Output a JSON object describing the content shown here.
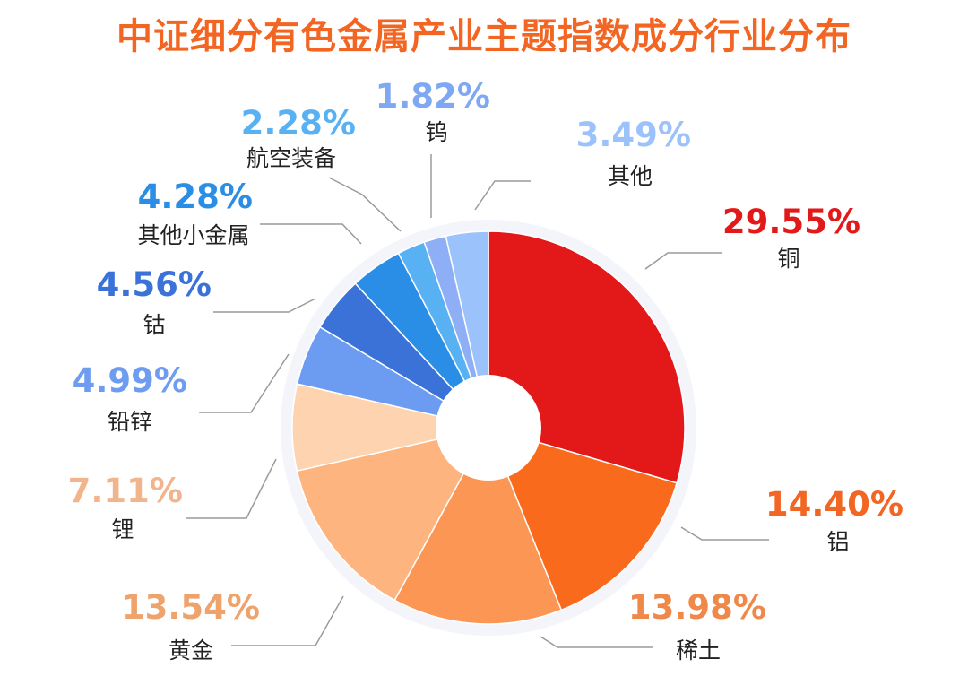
{
  "chart_data": {
    "type": "pie",
    "style": "donut",
    "title": "中证细分有色金属产业主题指数成分行业分布",
    "unit": "%",
    "slices": [
      {
        "label": "铜",
        "value": 29.55,
        "display": "29.55%",
        "color": "#e31818"
      },
      {
        "label": "铝",
        "value": 14.4,
        "display": "14.40%",
        "color": "#fa6a1c"
      },
      {
        "label": "稀土",
        "value": 13.98,
        "display": "13.98%",
        "color": "#fc9654"
      },
      {
        "label": "黄金",
        "value": 13.54,
        "display": "13.54%",
        "color": "#fdb47e"
      },
      {
        "label": "锂",
        "value": 7.11,
        "display": "7.11%",
        "color": "#fdd3b0"
      },
      {
        "label": "铅锌",
        "value": 4.99,
        "display": "4.99%",
        "color": "#6c9cf2"
      },
      {
        "label": "钴",
        "value": 4.56,
        "display": "4.56%",
        "color": "#3a72d8"
      },
      {
        "label": "其他小金属",
        "value": 4.28,
        "display": "4.28%",
        "color": "#2b8ee6"
      },
      {
        "label": "航空装备",
        "value": 2.28,
        "display": "2.28%",
        "color": "#57b1f3"
      },
      {
        "label": "钨",
        "value": 1.82,
        "display": "1.82%",
        "color": "#8eaef5"
      },
      {
        "label": "其他",
        "value": 3.49,
        "display": "3.49%",
        "color": "#9cc2fb"
      }
    ]
  },
  "colors": {
    "title": "#f26522",
    "label_colors": [
      "#e31818",
      "#f26522",
      "#f0884a",
      "#eea36c",
      "#f1b48b",
      "#6e9cf0",
      "#3a72d8",
      "#2b8ee6",
      "#57b1f3",
      "#7fa8f2",
      "#9cc2fb"
    ]
  }
}
